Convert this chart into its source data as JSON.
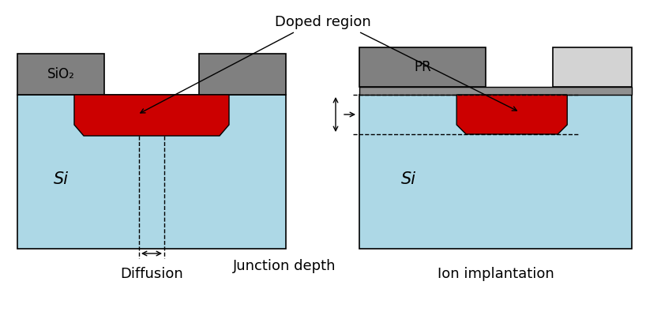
{
  "bg_color": "#ffffff",
  "si_color": "#add8e6",
  "sio2_color": "#808080",
  "pr_dark_color": "#808080",
  "pr_light_color": "#d3d3d3",
  "thin_oxide_color": "#909090",
  "red_color": "#cc0000",
  "black": "#000000",
  "label_diffusion": "Diffusion",
  "label_ion": "Ion implantation",
  "label_doped": "Doped region",
  "label_junction": "Junction depth",
  "label_sio2": "SiO₂",
  "label_si_left": "Si",
  "label_si_right": "Si",
  "label_pr": "PR"
}
